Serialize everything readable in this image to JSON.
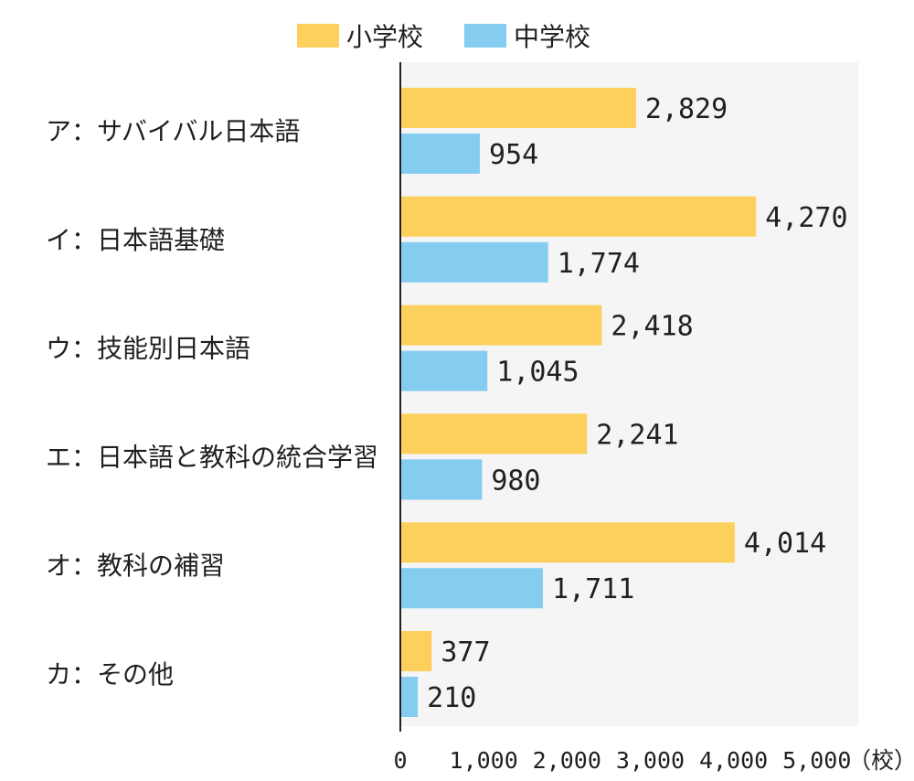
{
  "chart_data": {
    "type": "bar",
    "orientation": "horizontal",
    "categories": [
      "ア：サバイバル日本語",
      "イ：日本語基礎",
      "ウ：技能別日本語",
      "エ：日本語と教科の統合学習",
      "オ：教科の補習",
      "カ：その他"
    ],
    "series": [
      {
        "name": "小学校",
        "color": "#fdd05d",
        "values": [
          2829,
          4270,
          2418,
          2241,
          4014,
          377
        ],
        "labels": [
          "2,829",
          "4,270",
          "2,418",
          "2,241",
          "4,014",
          "377"
        ]
      },
      {
        "name": "中学校",
        "color": "#84cdf0",
        "values": [
          954,
          1774,
          1045,
          980,
          1711,
          210
        ],
        "labels": [
          "954",
          "1,774",
          "1,045",
          "980",
          "1,711",
          "210"
        ]
      }
    ],
    "xlim": [
      0,
      5500
    ],
    "ticks": [
      {
        "value": 0,
        "label": "0"
      },
      {
        "value": 1000,
        "label": "1,000"
      },
      {
        "value": 2000,
        "label": "2,000"
      },
      {
        "value": 3000,
        "label": "3,000"
      },
      {
        "value": 4000,
        "label": "4,000"
      },
      {
        "value": 5000,
        "label": "5,000"
      }
    ],
    "unit": "（校）",
    "legend_position": "top",
    "plot_background": "#f4f5f4"
  }
}
